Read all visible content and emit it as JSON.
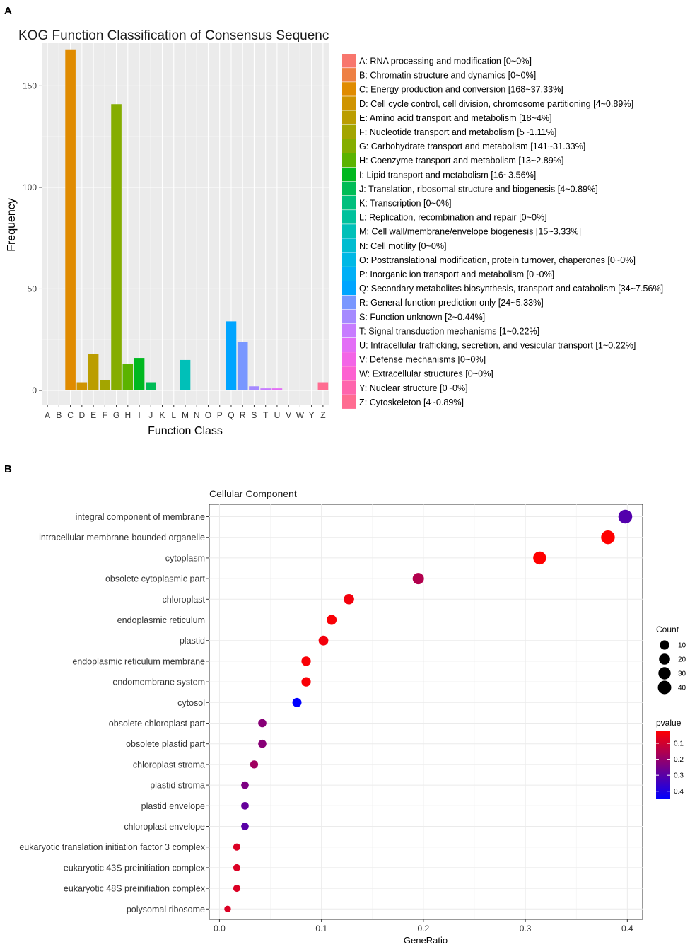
{
  "chart_data": [
    {
      "panel": "A",
      "type": "bar",
      "title": "KOG Function Classification of Consensus Sequenc",
      "xlabel": "Function Class",
      "ylabel": "Frequency",
      "ylim": [
        0,
        170
      ],
      "yticks": [
        0,
        50,
        100,
        150
      ],
      "categories": [
        "A",
        "B",
        "C",
        "D",
        "E",
        "F",
        "G",
        "H",
        "I",
        "J",
        "K",
        "L",
        "M",
        "N",
        "O",
        "P",
        "Q",
        "R",
        "S",
        "T",
        "U",
        "V",
        "W",
        "Y",
        "Z"
      ],
      "values": [
        0,
        0,
        168,
        4,
        18,
        5,
        141,
        13,
        16,
        4,
        0,
        0,
        15,
        0,
        0,
        0,
        34,
        24,
        2,
        1,
        1,
        0,
        0,
        0,
        4
      ],
      "colors": [
        "#F8766D",
        "#EE8044",
        "#E08B00",
        "#CF9400",
        "#BB9D00",
        "#A3A500",
        "#85AD00",
        "#5BB300",
        "#00B81F",
        "#00BC56",
        "#00BF7D",
        "#00C19C",
        "#00C0B8",
        "#00BDD0",
        "#00B8E5",
        "#00B0F6",
        "#00A5FF",
        "#7997FF",
        "#A58AFF",
        "#C77CFF",
        "#E36EF6",
        "#F365E6",
        "#FD61D1",
        "#FF65AC",
        "#FF6C91"
      ],
      "legend": [
        "A: RNA processing and modification [0~0%]",
        "B: Chromatin structure and dynamics [0~0%]",
        "C: Energy production and conversion [168~37.33%]",
        "D: Cell cycle control, cell division, chromosome partitioning [4~0.89%]",
        "E: Amino acid transport and metabolism [18~4%]",
        "F: Nucleotide transport and metabolism [5~1.11%]",
        "G: Carbohydrate transport and metabolism [141~31.33%]",
        "H: Coenzyme transport and metabolism [13~2.89%]",
        "I: Lipid transport and metabolism [16~3.56%]",
        "J: Translation, ribosomal structure and biogenesis [4~0.89%]",
        "K: Transcription [0~0%]",
        "L: Replication, recombination and repair [0~0%]",
        "M: Cell wall/membrane/envelope biogenesis [15~3.33%]",
        "N: Cell motility [0~0%]",
        "O: Posttranslational modification, protein turnover, chaperones [0~0%]",
        "P: Inorganic ion transport and metabolism [0~0%]",
        "Q: Secondary metabolites biosynthesis, transport and catabolism [34~7.56%]",
        "R: General function prediction only [24~5.33%]",
        "S: Function unknown [2~0.44%]",
        "T: Signal transduction mechanisms [1~0.22%]",
        "U: Intracellular trafficking, secretion, and vesicular transport [1~0.22%]",
        "V: Defense mechanisms [0~0%]",
        "W: Extracellular structures [0~0%]",
        "Y: Nuclear structure [0~0%]",
        "Z: Cytoskeleton [4~0.89%]"
      ]
    },
    {
      "panel": "B",
      "type": "scatter",
      "title": "Cellular  Component",
      "xlabel": "GeneRatio",
      "ylabel": "",
      "xlim": [
        -0.01,
        0.415
      ],
      "xticks": [
        0.0,
        0.1,
        0.2,
        0.3,
        0.4
      ],
      "xtick_labels": [
        "0.0",
        "0.1",
        "0.2",
        "0.3",
        "0.4"
      ],
      "terms": [
        {
          "name": "integral component of membrane",
          "gene_ratio": 0.398,
          "count": 45,
          "pvalue": 0.31
        },
        {
          "name": "intracellular membrane-bounded organelle",
          "gene_ratio": 0.381,
          "count": 43,
          "pvalue": 0.02
        },
        {
          "name": "cytoplasm",
          "gene_ratio": 0.314,
          "count": 36,
          "pvalue": 0.02
        },
        {
          "name": "obsolete cytoplasmic part",
          "gene_ratio": 0.195,
          "count": 22,
          "pvalue": 0.15
        },
        {
          "name": "chloroplast",
          "gene_ratio": 0.127,
          "count": 15,
          "pvalue": 0.04
        },
        {
          "name": "endoplasmic reticulum",
          "gene_ratio": 0.11,
          "count": 13,
          "pvalue": 0.03
        },
        {
          "name": "plastid",
          "gene_ratio": 0.102,
          "count": 12,
          "pvalue": 0.04
        },
        {
          "name": "endoplasmic reticulum membrane",
          "gene_ratio": 0.085,
          "count": 10,
          "pvalue": 0.03
        },
        {
          "name": "endomembrane system",
          "gene_ratio": 0.085,
          "count": 10,
          "pvalue": 0.03
        },
        {
          "name": "cytosol",
          "gene_ratio": 0.076,
          "count": 9,
          "pvalue": 0.45
        },
        {
          "name": "obsolete chloroplast part",
          "gene_ratio": 0.042,
          "count": 5,
          "pvalue": 0.22
        },
        {
          "name": "obsolete plastid part",
          "gene_ratio": 0.042,
          "count": 5,
          "pvalue": 0.22
        },
        {
          "name": "chloroplast stroma",
          "gene_ratio": 0.034,
          "count": 4,
          "pvalue": 0.18
        },
        {
          "name": "plastid stroma",
          "gene_ratio": 0.025,
          "count": 3,
          "pvalue": 0.24
        },
        {
          "name": "plastid envelope",
          "gene_ratio": 0.025,
          "count": 3,
          "pvalue": 0.28
        },
        {
          "name": "chloroplast envelope",
          "gene_ratio": 0.025,
          "count": 3,
          "pvalue": 0.3
        },
        {
          "name": "eukaryotic translation initiation factor 3 complex",
          "gene_ratio": 0.017,
          "count": 2,
          "pvalue": 0.08
        },
        {
          "name": "eukaryotic 43S preinitiation complex",
          "gene_ratio": 0.017,
          "count": 2,
          "pvalue": 0.08
        },
        {
          "name": "eukaryotic 48S preinitiation complex",
          "gene_ratio": 0.017,
          "count": 2,
          "pvalue": 0.08
        },
        {
          "name": "polysomal ribosome",
          "gene_ratio": 0.008,
          "count": 1,
          "pvalue": 0.08
        }
      ],
      "size_legend": {
        "title": "Count",
        "breaks": [
          10,
          20,
          30,
          40
        ],
        "labels": [
          "10",
          "20",
          "30",
          "40"
        ]
      },
      "color_legend": {
        "title": "pvalue",
        "breaks": [
          0.1,
          0.2,
          0.3,
          0.4
        ],
        "labels": [
          "0.1",
          "0.2",
          "0.3",
          "0.4"
        ],
        "low_color": "#FF0000",
        "high_color": "#0000FF",
        "range": [
          0.02,
          0.45
        ]
      }
    }
  ],
  "panel_labels": {
    "a": "A",
    "b": "B"
  }
}
